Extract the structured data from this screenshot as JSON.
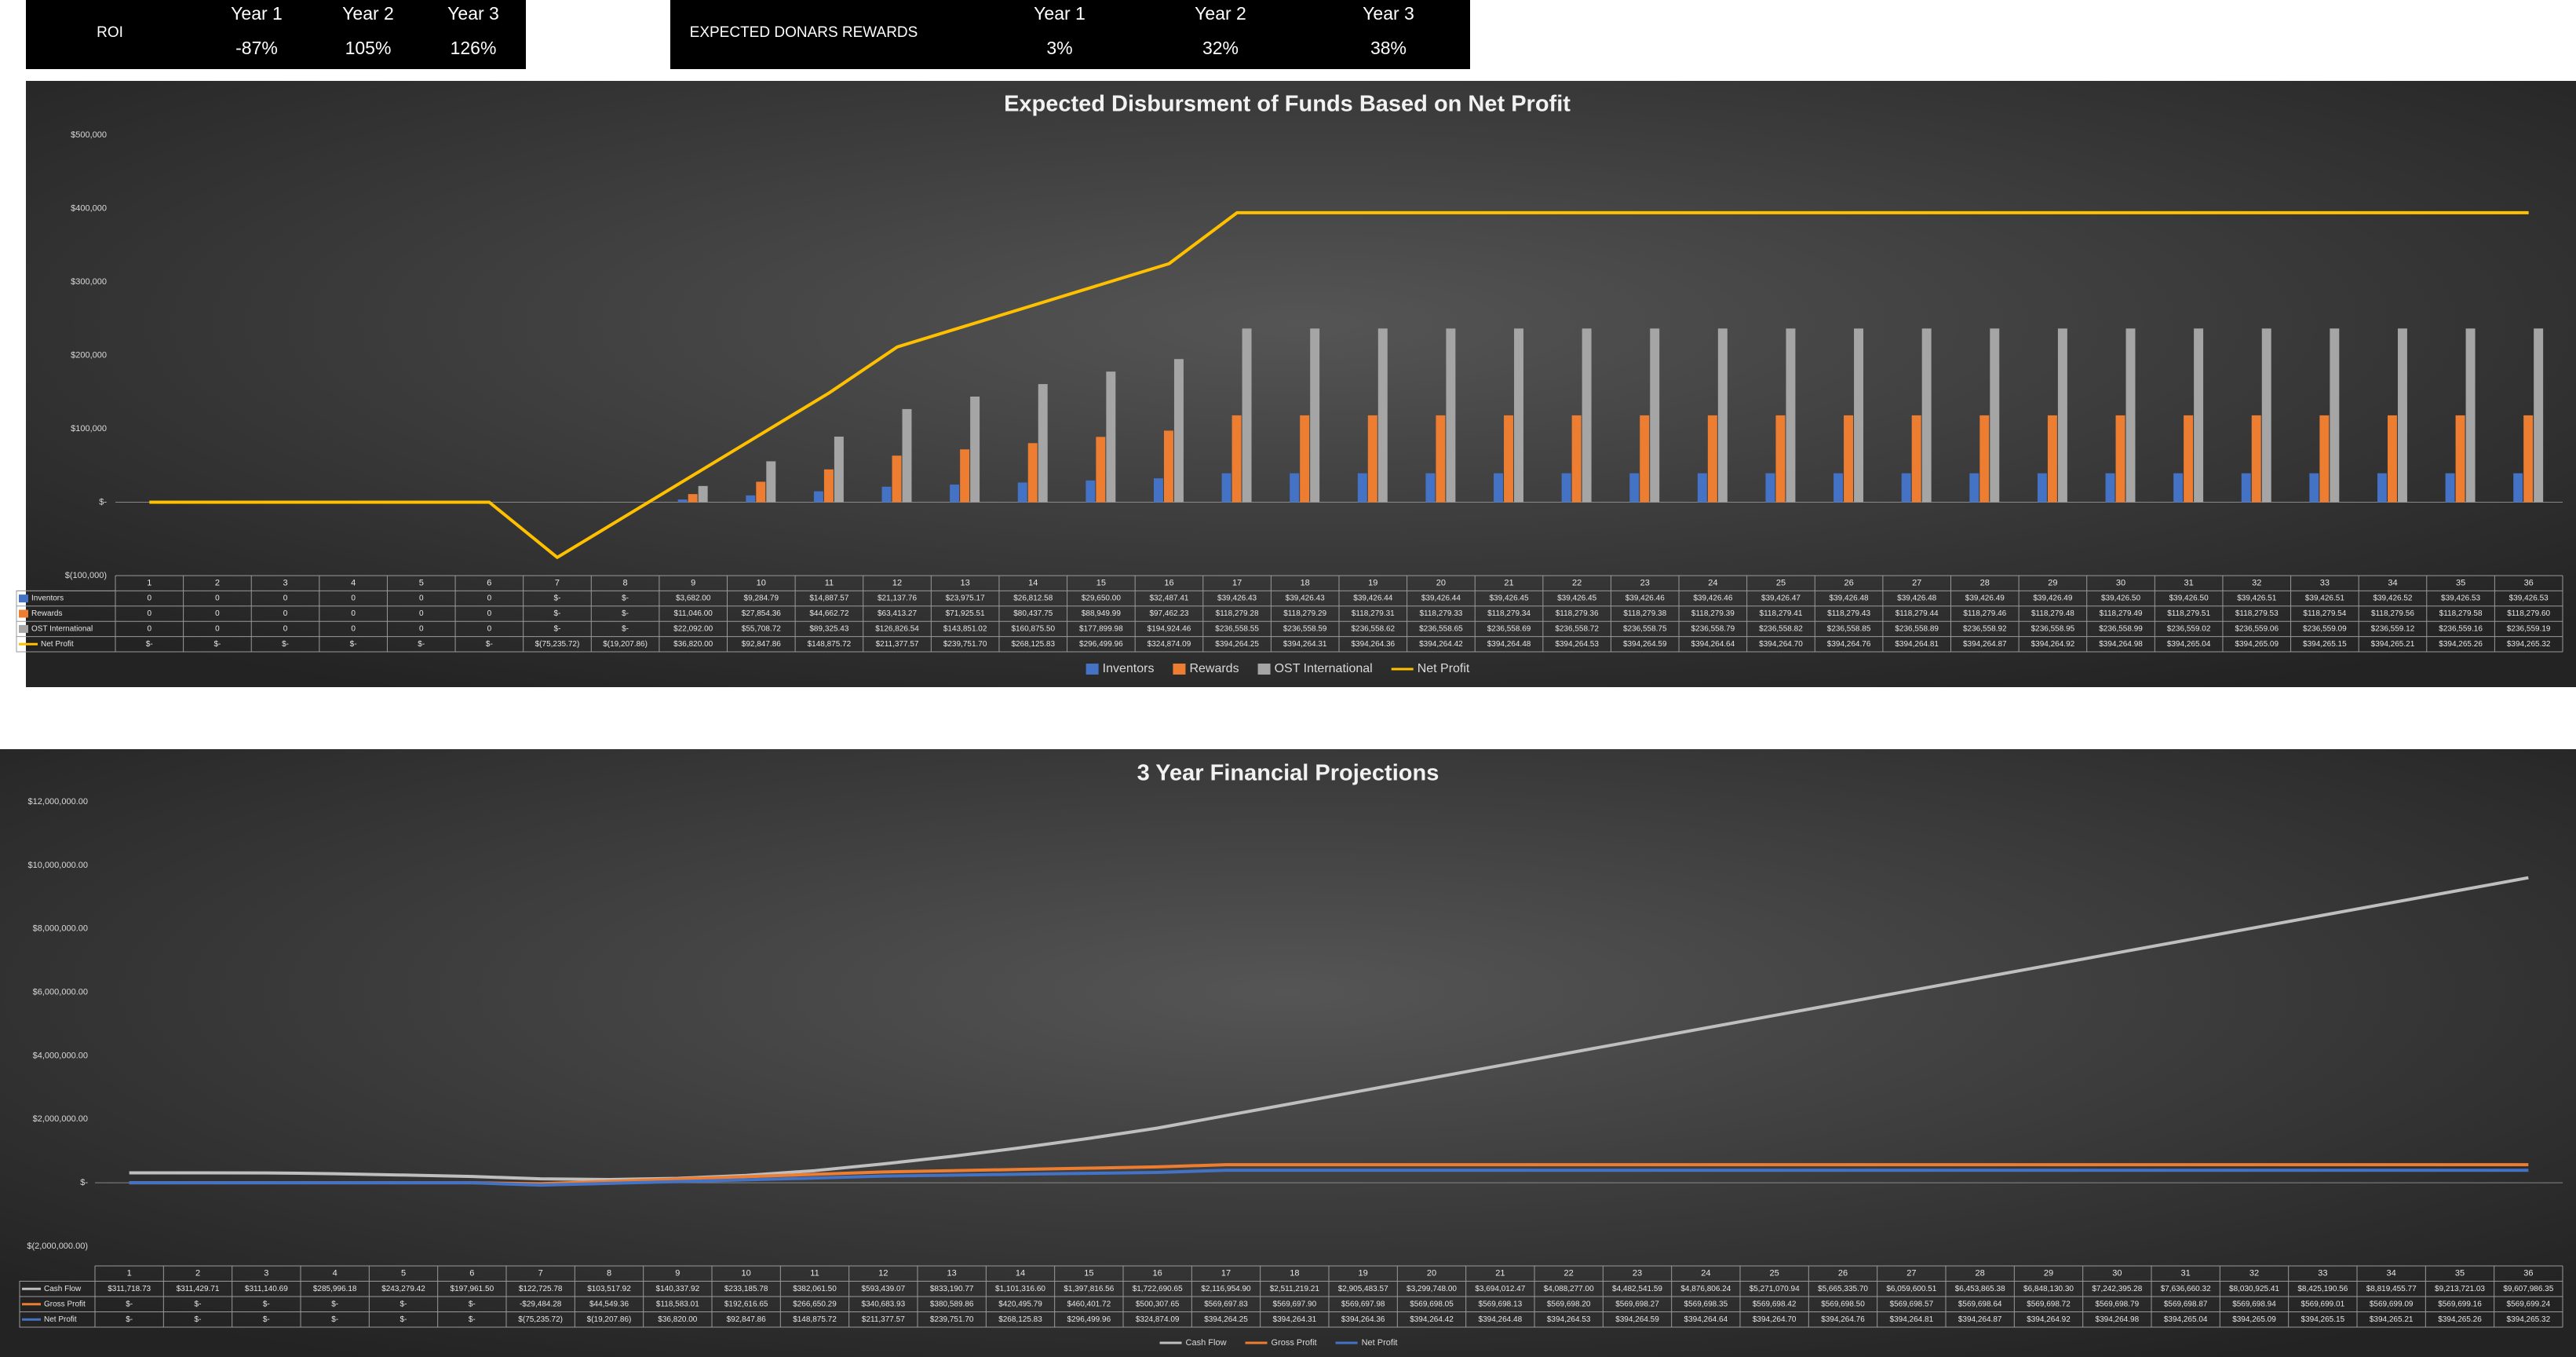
{
  "roi": {
    "label": "ROI",
    "headers": [
      "Year 1",
      "Year 2",
      "Year 3"
    ],
    "values": [
      "-87%",
      "105%",
      "126%"
    ]
  },
  "rewards": {
    "label": "EXPECTED DONARS REWARDS",
    "headers": [
      "Year 1",
      "Year 2",
      "Year 3"
    ],
    "values": [
      "3%",
      "32%",
      "38%"
    ]
  },
  "chart_data": [
    {
      "type": "bar",
      "title": "Expected Disbursment of Funds Based on Net Profit",
      "legend": "bottom",
      "grid": false,
      "categories": [
        1,
        2,
        3,
        4,
        5,
        6,
        7,
        8,
        9,
        10,
        11,
        12,
        13,
        14,
        15,
        16,
        17,
        18,
        19,
        20,
        21,
        22,
        23,
        24,
        25,
        26,
        27,
        28,
        29,
        30,
        31,
        32,
        33,
        34,
        35,
        36
      ],
      "ylim": [
        -100000,
        500000
      ],
      "yticks": [
        {
          "value": -100000,
          "label": "$(100,000)"
        },
        {
          "value": 0,
          "label": "$-"
        },
        {
          "value": 100000,
          "label": "$100,000"
        },
        {
          "value": 200000,
          "label": "$200,000"
        },
        {
          "value": 300000,
          "label": "$300,000"
        },
        {
          "value": 400000,
          "label": "$400,000"
        },
        {
          "value": 500000,
          "label": "$500,000"
        }
      ],
      "series": [
        {
          "name": "Inventors",
          "color": "#4472c4",
          "type": "bar",
          "values": [
            0,
            0,
            0,
            0,
            0,
            0,
            0,
            0,
            3682.0,
            9284.79,
            14887.57,
            21137.76,
            23975.17,
            26812.58,
            29650.0,
            32487.41,
            39426.43,
            39426.43,
            39426.44,
            39426.44,
            39426.45,
            39426.45,
            39426.46,
            39426.46,
            39426.47,
            39426.48,
            39426.48,
            39426.49,
            39426.49,
            39426.5,
            39426.5,
            39426.51,
            39426.51,
            39426.52,
            39426.53,
            39426.53
          ],
          "value_labels": [
            "0",
            "0",
            "0",
            "0",
            "0",
            "0",
            "$-",
            "$-",
            "$3,682.00",
            "$9,284.79",
            "$14,887.57",
            "$21,137.76",
            "$23,975.17",
            "$26,812.58",
            "$29,650.00",
            "$32,487.41",
            "$39,426.43",
            "$39,426.43",
            "$39,426.44",
            "$39,426.44",
            "$39,426.45",
            "$39,426.45",
            "$39,426.46",
            "$39,426.46",
            "$39,426.47",
            "$39,426.48",
            "$39,426.48",
            "$39,426.49",
            "$39,426.49",
            "$39,426.50",
            "$39,426.50",
            "$39,426.51",
            "$39,426.51",
            "$39,426.52",
            "$39,426.53",
            "$39,426.53"
          ]
        },
        {
          "name": "Rewards",
          "color": "#ed7d31",
          "type": "bar",
          "values": [
            0,
            0,
            0,
            0,
            0,
            0,
            0,
            0,
            11046.0,
            27854.36,
            44662.72,
            63413.27,
            71925.51,
            80437.75,
            88949.99,
            97462.23,
            118279.28,
            118279.29,
            118279.31,
            118279.33,
            118279.34,
            118279.36,
            118279.38,
            118279.39,
            118279.41,
            118279.43,
            118279.44,
            118279.46,
            118279.48,
            118279.49,
            118279.51,
            118279.53,
            118279.54,
            118279.56,
            118279.58,
            118279.6
          ],
          "value_labels": [
            "0",
            "0",
            "0",
            "0",
            "0",
            "0",
            "$-",
            "$-",
            "$11,046.00",
            "$27,854.36",
            "$44,662.72",
            "$63,413.27",
            "$71,925.51",
            "$80,437.75",
            "$88,949.99",
            "$97,462.23",
            "$118,279.28",
            "$118,279.29",
            "$118,279.31",
            "$118,279.33",
            "$118,279.34",
            "$118,279.36",
            "$118,279.38",
            "$118,279.39",
            "$118,279.41",
            "$118,279.43",
            "$118,279.44",
            "$118,279.46",
            "$118,279.48",
            "$118,279.49",
            "$118,279.51",
            "$118,279.53",
            "$118,279.54",
            "$118,279.56",
            "$118,279.58",
            "$118,279.60"
          ]
        },
        {
          "name": "OST International",
          "color": "#a5a5a5",
          "type": "bar",
          "values": [
            0,
            0,
            0,
            0,
            0,
            0,
            0,
            0,
            22092.0,
            55708.72,
            89325.43,
            126826.54,
            143851.02,
            160875.5,
            177899.98,
            194924.46,
            236558.55,
            236558.59,
            236558.62,
            236558.65,
            236558.69,
            236558.72,
            236558.75,
            236558.79,
            236558.82,
            236558.85,
            236558.89,
            236558.92,
            236558.95,
            236558.99,
            236559.02,
            236559.06,
            236559.09,
            236559.12,
            236559.16,
            236559.19
          ],
          "value_labels": [
            "0",
            "0",
            "0",
            "0",
            "0",
            "0",
            "$-",
            "$-",
            "$22,092.00",
            "$55,708.72",
            "$89,325.43",
            "$126,826.54",
            "$143,851.02",
            "$160,875.50",
            "$177,899.98",
            "$194,924.46",
            "$236,558.55",
            "$236,558.59",
            "$236,558.62",
            "$236,558.65",
            "$236,558.69",
            "$236,558.72",
            "$236,558.75",
            "$236,558.79",
            "$236,558.82",
            "$236,558.85",
            "$236,558.89",
            "$236,558.92",
            "$236,558.95",
            "$236,558.99",
            "$236,559.02",
            "$236,559.06",
            "$236,559.09",
            "$236,559.12",
            "$236,559.16",
            "$236,559.19"
          ]
        },
        {
          "name": "Net Profit",
          "color": "#ffc000",
          "type": "line",
          "values": [
            0,
            0,
            0,
            0,
            0,
            0,
            -75235.72,
            -19207.86,
            36820.0,
            92847.86,
            148875.72,
            211377.57,
            239751.7,
            268125.83,
            296499.96,
            324874.09,
            394264.25,
            394264.31,
            394264.36,
            394264.42,
            394264.48,
            394264.53,
            394264.59,
            394264.64,
            394264.7,
            394264.76,
            394264.81,
            394264.87,
            394264.92,
            394264.98,
            394265.04,
            394265.09,
            394265.15,
            394265.21,
            394265.26,
            394265.32
          ],
          "value_labels": [
            "$-",
            "$-",
            "$-",
            "$-",
            "$-",
            "$-",
            "$(75,235.72)",
            "$(19,207.86)",
            "$36,820.00",
            "$92,847.86",
            "$148,875.72",
            "$211,377.57",
            "$239,751.70",
            "$268,125.83",
            "$296,499.96",
            "$324,874.09",
            "$394,264.25",
            "$394,264.31",
            "$394,264.36",
            "$394,264.42",
            "$394,264.48",
            "$394,264.53",
            "$394,264.59",
            "$394,264.64",
            "$394,264.70",
            "$394,264.76",
            "$394,264.81",
            "$394,264.87",
            "$394,264.92",
            "$394,264.98",
            "$394,265.04",
            "$394,265.09",
            "$394,265.15",
            "$394,265.21",
            "$394,265.26",
            "$394,265.32"
          ]
        }
      ]
    },
    {
      "type": "line",
      "title": "3 Year Financial Projections",
      "legend": "bottom",
      "grid": false,
      "categories": [
        1,
        2,
        3,
        4,
        5,
        6,
        7,
        8,
        9,
        10,
        11,
        12,
        13,
        14,
        15,
        16,
        17,
        18,
        19,
        20,
        21,
        22,
        23,
        24,
        25,
        26,
        27,
        28,
        29,
        30,
        31,
        32,
        33,
        34,
        35,
        36
      ],
      "ylim": [
        -2000000,
        12000000
      ],
      "yticks": [
        {
          "value": -2000000,
          "label": "$(2,000,000.00)"
        },
        {
          "value": 0,
          "label": "$-"
        },
        {
          "value": 2000000,
          "label": "$2,000,000.00"
        },
        {
          "value": 4000000,
          "label": "$4,000,000.00"
        },
        {
          "value": 6000000,
          "label": "$6,000,000.00"
        },
        {
          "value": 8000000,
          "label": "$8,000,000.00"
        },
        {
          "value": 10000000,
          "label": "$10,000,000.00"
        },
        {
          "value": 12000000,
          "label": "$12,000,000.00"
        }
      ],
      "series": [
        {
          "name": "Cash Flow",
          "color": "#bfbfbf",
          "values": [
            311718.73,
            311429.71,
            311140.69,
            285996.18,
            243279.42,
            197961.5,
            122725.78,
            103517.92,
            140337.92,
            233185.78,
            382061.5,
            593439.07,
            833190.77,
            1101316.6,
            1397816.56,
            1722690.65,
            2116954.9,
            2511219.21,
            2905483.57,
            3299748.0,
            3694012.47,
            4088277.0,
            4482541.59,
            4876806.24,
            5271070.94,
            5665335.7,
            6059600.51,
            6453865.38,
            6848130.3,
            7242395.28,
            7636660.32,
            8030925.41,
            8425190.56,
            8819455.77,
            9213721.03,
            9607986.35
          ],
          "value_labels": [
            "$311,718.73",
            "$311,429.71",
            "$311,140.69",
            "$285,996.18",
            "$243,279.42",
            "$197,961.50",
            "$122,725.78",
            "$103,517.92",
            "$140,337.92",
            "$233,185.78",
            "$382,061.50",
            "$593,439.07",
            "$833,190.77",
            "$1,101,316.60",
            "$1,397,816.56",
            "$1,722,690.65",
            "$2,116,954.90",
            "$2,511,219.21",
            "$2,905,483.57",
            "$3,299,748.00",
            "$3,694,012.47",
            "$4,088,277.00",
            "$4,482,541.59",
            "$4,876,806.24",
            "$5,271,070.94",
            "$5,665,335.70",
            "$6,059,600.51",
            "$6,453,865.38",
            "$6,848,130.30",
            "$7,242,395.28",
            "$7,636,660.32",
            "$8,030,925.41",
            "$8,425,190.56",
            "$8,819,455.77",
            "$9,213,721.03",
            "$9,607,986.35"
          ]
        },
        {
          "name": "Gross Profit",
          "color": "#ed7d31",
          "values": [
            0,
            0,
            0,
            0,
            0,
            0,
            -29484.28,
            44549.36,
            118583.01,
            192616.65,
            266650.29,
            340683.93,
            380589.86,
            420495.79,
            460401.72,
            500307.65,
            569697.83,
            569697.9,
            569697.98,
            569698.05,
            569698.13,
            569698.2,
            569698.27,
            569698.35,
            569698.42,
            569698.5,
            569698.57,
            569698.64,
            569698.72,
            569698.79,
            569698.87,
            569698.94,
            569699.01,
            569699.09,
            569699.16,
            569699.24
          ],
          "value_labels": [
            "$-",
            "$-",
            "$-",
            "$-",
            "$-",
            "$-",
            "-$29,484.28",
            "$44,549.36",
            "$118,583.01",
            "$192,616.65",
            "$266,650.29",
            "$340,683.93",
            "$380,589.86",
            "$420,495.79",
            "$460,401.72",
            "$500,307.65",
            "$569,697.83",
            "$569,697.90",
            "$569,697.98",
            "$569,698.05",
            "$569,698.13",
            "$569,698.20",
            "$569,698.27",
            "$569,698.35",
            "$569,698.42",
            "$569,698.50",
            "$569,698.57",
            "$569,698.64",
            "$569,698.72",
            "$569,698.79",
            "$569,698.87",
            "$569,698.94",
            "$569,699.01",
            "$569,699.09",
            "$569,699.16",
            "$569,699.24"
          ]
        },
        {
          "name": "Net Profit",
          "color": "#4472c4",
          "values": [
            0,
            0,
            0,
            0,
            0,
            0,
            -75235.72,
            -19207.86,
            36820.0,
            92847.86,
            148875.72,
            211377.57,
            239751.7,
            268125.83,
            296499.96,
            324874.09,
            394264.25,
            394264.31,
            394264.36,
            394264.42,
            394264.48,
            394264.53,
            394264.59,
            394264.64,
            394264.7,
            394264.76,
            394264.81,
            394264.87,
            394264.92,
            394264.98,
            394265.04,
            394265.09,
            394265.15,
            394265.21,
            394265.26,
            394265.32
          ],
          "value_labels": [
            "$-",
            "$-",
            "$-",
            "$-",
            "$-",
            "$-",
            "$(75,235.72)",
            "$(19,207.86)",
            "$36,820.00",
            "$92,847.86",
            "$148,875.72",
            "$211,377.57",
            "$239,751.70",
            "$268,125.83",
            "$296,499.96",
            "$324,874.09",
            "$394,264.25",
            "$394,264.31",
            "$394,264.36",
            "$394,264.42",
            "$394,264.48",
            "$394,264.53",
            "$394,264.59",
            "$394,264.64",
            "$394,264.70",
            "$394,264.76",
            "$394,264.81",
            "$394,264.87",
            "$394,264.92",
            "$394,264.98",
            "$394,265.04",
            "$394,265.09",
            "$394,265.15",
            "$394,265.21",
            "$394,265.26",
            "$394,265.32"
          ]
        }
      ]
    }
  ]
}
